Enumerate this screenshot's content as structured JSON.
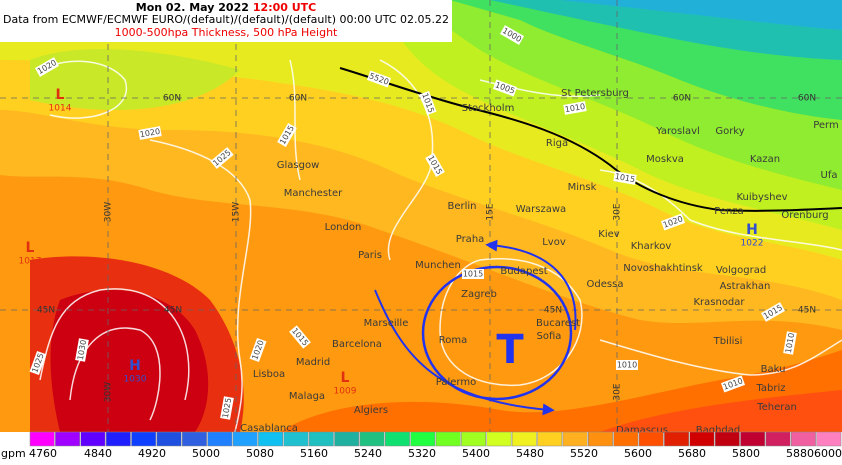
{
  "header": {
    "date": "Mon 02. May 2022",
    "time": "12:00 UTC",
    "source": "Data from ECMWF/ECMWF EURO/(default)/(default)/(default) 00:00 UTC 02.05.22",
    "product": "1000-500hpa Thickness, 500 hPa Height"
  },
  "cities": [
    "Stockholm",
    "St Petersburg",
    "Yaroslavl",
    "Gorky",
    "Perm",
    "Riga",
    "Moskva",
    "Kazan",
    "Ufa",
    "Glasgow",
    "Manchester",
    "Minsk",
    "Kuibyshev",
    "Berlin",
    "Warszawa",
    "Penza",
    "Orenburg",
    "London",
    "Praha",
    "Lvov",
    "Kiev",
    "Kharkov",
    "Paris",
    "Munchen",
    "Budapest",
    "Novoshakhtinsk",
    "Volgograd",
    "Odessa",
    "Astrakhan",
    "Zagreb",
    "Krasnodar",
    "Marseille",
    "Bucarest",
    "Barcelona",
    "Roma",
    "Sofia",
    "Tbilisi",
    "Madrid",
    "Baku",
    "Lisboa",
    "Palermo",
    "Tabriz",
    "Malaga",
    "Algiers",
    "Teheran",
    "Casablanca",
    "Damascus",
    "Baghdad"
  ],
  "grid_labels": [
    "60N",
    "60N",
    "60N",
    "60N",
    "45N",
    "45N",
    "45N",
    "45N",
    "30W",
    "15W",
    "15E",
    "30E",
    "30W",
    "30E"
  ],
  "isolines": [
    "1020",
    "1020",
    "1025",
    "1015",
    "1005",
    "1000",
    "5520",
    "1015",
    "1010",
    "1015",
    "1015",
    "1020",
    "1015",
    "1015",
    "1010",
    "1010",
    "1010",
    "1025",
    "1030",
    "1020",
    "1015",
    "1025"
  ],
  "pressure_centers": [
    {
      "type": "L",
      "value": "1014"
    },
    {
      "type": "L",
      "value": "1017"
    },
    {
      "type": "H",
      "value": "1030"
    },
    {
      "type": "L",
      "value": "1009"
    },
    {
      "type": "H",
      "value": "1022"
    }
  ],
  "trough": "T",
  "colorbar": {
    "unit": "gpm",
    "colors": [
      "#ff00ff",
      "#a000ff",
      "#6000ff",
      "#2020ff",
      "#1040ff",
      "#2050e0",
      "#3060e0",
      "#2080ff",
      "#20a0ff",
      "#10c0f0",
      "#20c0d0",
      "#20c0c0",
      "#20b0a0",
      "#20c080",
      "#10e070",
      "#20ff40",
      "#70ff20",
      "#a0ff20",
      "#d0ff20",
      "#f0f020",
      "#ffd020",
      "#ffb020",
      "#ff9010",
      "#ff7000",
      "#ff5000",
      "#e02000",
      "#d00000",
      "#c00010",
      "#c00030",
      "#d02060",
      "#f060a0",
      "#ff80c0"
    ],
    "labels": [
      4760,
      4840,
      4920,
      5000,
      5080,
      5160,
      5240,
      5320,
      5400,
      5480,
      5520,
      5600,
      5680,
      5800,
      5880,
      6000
    ]
  }
}
